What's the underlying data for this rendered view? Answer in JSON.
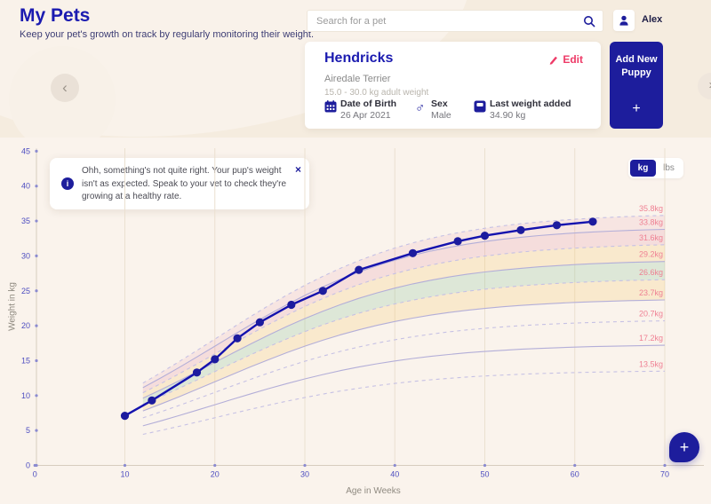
{
  "header": {
    "title": "My Pets",
    "subtitle": "Keep your pet's growth on track by regularly monitoring their weight."
  },
  "search": {
    "placeholder": "Search for a pet"
  },
  "user": {
    "name": "Alex"
  },
  "nav": {
    "prev_icon": "chevron-left",
    "next_icon": "chevron-right"
  },
  "pet_card": {
    "name": "Hendricks",
    "edit_label": "Edit",
    "breed": "Airedale Terrier",
    "adult_weight_range": "15.0 - 30.0 kg adult weight",
    "stats": [
      {
        "icon": "calendar-icon",
        "label": "Date of Birth",
        "value": "26 Apr 2021"
      },
      {
        "icon": "male-icon",
        "label": "Sex",
        "value": "Male"
      },
      {
        "icon": "scale-icon",
        "label": "Last weight added",
        "value": "34.90 kg"
      }
    ]
  },
  "add_button": {
    "label": "Add New Puppy",
    "plus": "+"
  },
  "alert": {
    "text": "Ohh, something's not quite right. Your pup's weight isn't as expected. Speak to your vet to check they're growing at a healthy rate.",
    "close": "×"
  },
  "fab": {
    "label": "+"
  },
  "chart_data": {
    "type": "line",
    "xlabel": "Age in Weeks",
    "ylabel": "Weight in kg",
    "xlim": [
      0,
      70
    ],
    "ylim": [
      0,
      45
    ],
    "x_ticks": [
      0,
      10,
      20,
      30,
      40,
      50,
      60,
      70
    ],
    "y_ticks": [
      0,
      5,
      10,
      15,
      20,
      25,
      30,
      35,
      40,
      45
    ],
    "grid": "vertical-only",
    "unit_toggle": {
      "options": [
        "kg",
        "lbs"
      ],
      "selected": "kg"
    },
    "series": [
      {
        "name": "puppy-weight",
        "x": [
          10,
          13,
          18,
          20,
          22.5,
          25,
          28.5,
          32,
          36,
          42,
          47,
          50,
          54,
          58,
          62
        ],
        "y": [
          7.1,
          9.3,
          13.3,
          15.2,
          18.2,
          20.5,
          23.0,
          25.0,
          28.0,
          30.4,
          32.1,
          32.9,
          33.7,
          34.4,
          34.9
        ]
      }
    ],
    "percentile_bands": {
      "start_week": 12,
      "end_week": 70,
      "curves": [
        {
          "label": "35.8kg",
          "value": 35.8,
          "style": "dashed"
        },
        {
          "label": "33.8kg",
          "value": 33.8,
          "style": "solid"
        },
        {
          "label": "31.6kg",
          "value": 31.6,
          "style": "dashed"
        },
        {
          "label": "29.2kg",
          "value": 29.2,
          "style": "solid"
        },
        {
          "label": "26.6kg",
          "value": 26.6,
          "style": "dashed"
        },
        {
          "label": "23.7kg",
          "value": 23.7,
          "style": "solid"
        },
        {
          "label": "20.7kg",
          "value": 20.7,
          "style": "dashed"
        },
        {
          "label": "17.2kg",
          "value": 17.2,
          "style": "solid"
        },
        {
          "label": "13.5kg",
          "value": 13.5,
          "style": "dashed"
        }
      ],
      "fills": [
        {
          "between": [
            35.8,
            33.8
          ],
          "color": "rgba(224,108,135,0.10)"
        },
        {
          "between": [
            33.8,
            31.6
          ],
          "color": "rgba(224,108,135,0.16)"
        },
        {
          "between": [
            31.6,
            29.2
          ],
          "color": "rgba(246,195,85,0.20)"
        },
        {
          "between": [
            29.2,
            26.6
          ],
          "color": "rgba(105,186,137,0.20)"
        },
        {
          "between": [
            26.6,
            23.7
          ],
          "color": "rgba(246,195,85,0.20)"
        }
      ]
    },
    "colors": {
      "line": "#1412ae",
      "marker": "#1c1b9e",
      "grid": "#ebe0d0",
      "axis": "#d6ccbe",
      "tick_dot": "#8b8bd0",
      "tick_label": "#4d4dc0",
      "curve_solid": "#b3aed8",
      "curve_dashed": "#c6c1e4",
      "band_label": "#ef8093"
    }
  }
}
